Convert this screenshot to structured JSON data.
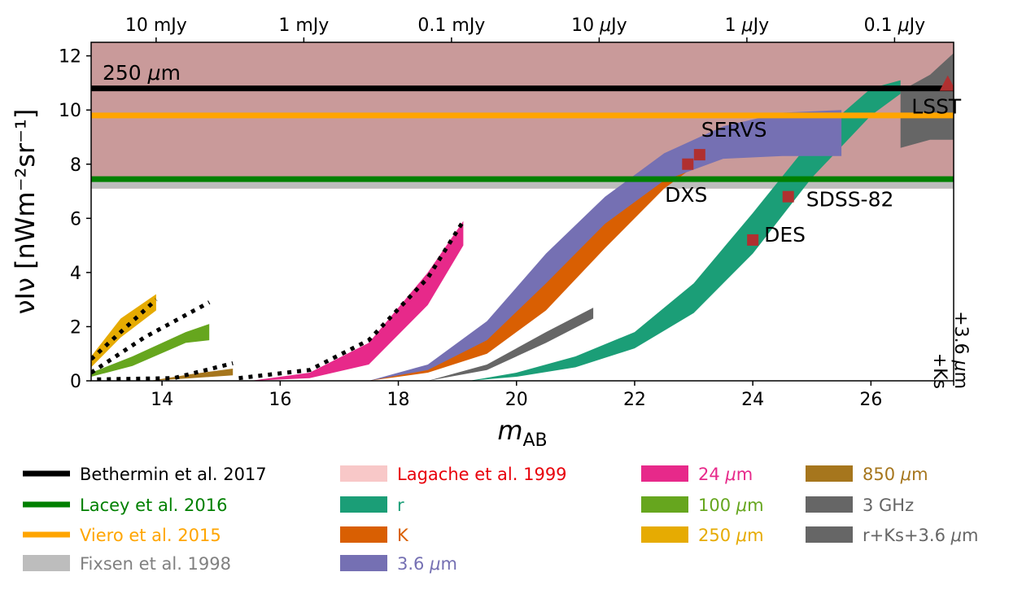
{
  "chart_data": {
    "type": "area",
    "title": "",
    "xlabel": "m",
    "xlabel_sub": "AB",
    "ylabel": "νIν [nWm⁻²sr⁻¹]",
    "xlim": [
      12.8,
      27.4
    ],
    "ylim": [
      0,
      12.5
    ],
    "x_ticks": [
      14,
      16,
      18,
      20,
      22,
      24,
      26
    ],
    "y_ticks": [
      0,
      2,
      4,
      6,
      8,
      10,
      12
    ],
    "top_axis": {
      "ticks": [
        {
          "m": 13.9,
          "label": "10 mJy"
        },
        {
          "m": 16.4,
          "label": "1 mJy"
        },
        {
          "m": 18.9,
          "label": "0.1 mJy"
        },
        {
          "m": 21.4,
          "label": "10 μJy"
        },
        {
          "m": 23.9,
          "label": "1 μJy"
        },
        {
          "m": 26.4,
          "label": "0.1 μJy"
        }
      ]
    },
    "extra_xtick_label": "+3.6 μm\n+Ks",
    "panel_label": "250 μm",
    "hlines": [
      {
        "name": "Bethermin et al. 2017",
        "y": 10.8,
        "color": "#000000"
      },
      {
        "name": "Lacey et al. 2016",
        "y": 7.45,
        "color": "#008000"
      },
      {
        "name": "Viero et al. 2015",
        "y": 9.8,
        "color": "#ffa500"
      }
    ],
    "hbands": [
      {
        "name": "Lagache et al. 1999",
        "y0": 7.1,
        "y1": 12.5,
        "color": "#c99a9a"
      },
      {
        "name": "Fixsen et al. 1998",
        "y0": 7.1,
        "y1": 7.35,
        "color": "#bdbdbd"
      }
    ],
    "series": [
      {
        "name": "r",
        "color": "#1b9e77",
        "x": [
          19.2,
          20,
          21,
          22,
          23,
          24,
          25,
          26,
          26.5
        ],
        "lower": [
          0,
          0.15,
          0.5,
          1.2,
          2.5,
          4.7,
          7.5,
          9.8,
          10.6
        ],
        "upper": [
          0,
          0.3,
          0.9,
          1.8,
          3.6,
          6.2,
          8.9,
          10.8,
          11.1
        ]
      },
      {
        "name": "K",
        "color": "#d95f02",
        "x": [
          17.5,
          18.5,
          19.5,
          20.5,
          21.5,
          22.5,
          23
        ],
        "lower": [
          0,
          0.3,
          1,
          2.6,
          4.9,
          7.1,
          7.9
        ],
        "upper": [
          0,
          0.5,
          1.6,
          3.7,
          6.3,
          8.1,
          8.7
        ]
      },
      {
        "name": "3.6 μm",
        "color": "#7570b3",
        "x": [
          17.5,
          18.5,
          19.5,
          20.5,
          21.5,
          22.5,
          23.5,
          24.5,
          25.5
        ],
        "lower": [
          0,
          0.4,
          1.5,
          3.6,
          5.8,
          7.4,
          8.2,
          8.3,
          8.3
        ],
        "upper": [
          0,
          0.6,
          2.2,
          4.7,
          6.8,
          8.4,
          9.4,
          9.9,
          10.0
        ]
      },
      {
        "name": "24 μm",
        "color": "#e7298a",
        "x": [
          15.5,
          16.5,
          17.5,
          18.5,
          19.1
        ],
        "lower": [
          0,
          0.1,
          0.6,
          2.8,
          5.0
        ],
        "upper": [
          0,
          0.3,
          1.4,
          4.0,
          5.9
        ]
      },
      {
        "name": "100 μm",
        "color": "#66a61e",
        "x": [
          12.8,
          13.5,
          14.4,
          14.8
        ],
        "lower": [
          0.15,
          0.55,
          1.4,
          1.5
        ],
        "upper": [
          0.3,
          0.9,
          1.8,
          2.1
        ]
      },
      {
        "name": "250 μm",
        "color": "#e6ab02",
        "x": [
          12.8,
          13.3,
          13.9
        ],
        "lower": [
          0.5,
          1.6,
          2.6
        ],
        "upper": [
          0.9,
          2.3,
          3.2
        ]
      },
      {
        "name": "850 μm",
        "color": "#a6761d",
        "x": [
          13.8,
          14.5,
          15.2
        ],
        "lower": [
          0,
          0.1,
          0.2
        ],
        "upper": [
          0,
          0.25,
          0.45
        ]
      },
      {
        "name": "3 GHz",
        "color": "#666666",
        "x": [
          18.5,
          19.5,
          20.5,
          21.3
        ],
        "lower": [
          0,
          0.4,
          1.4,
          2.3
        ],
        "upper": [
          0,
          0.6,
          1.8,
          2.7
        ]
      },
      {
        "name": "r+Ks+3.6 μm",
        "color": "#666666",
        "x": [
          26.5,
          27.0,
          27.4
        ],
        "lower": [
          8.6,
          8.9,
          8.9
        ],
        "upper": [
          10.7,
          11.3,
          12.1
        ]
      }
    ],
    "dotted_lines": [
      {
        "x": [
          12.8,
          13.3,
          13.9
        ],
        "y": [
          0.8,
          1.8,
          3.0
        ]
      },
      {
        "x": [
          12.8,
          13.7,
          14.8
        ],
        "y": [
          0.3,
          1.6,
          2.9
        ]
      },
      {
        "x": [
          12.9,
          14.2,
          15.2
        ],
        "y": [
          0.05,
          0.1,
          0.65
        ]
      },
      {
        "x": [
          15.3,
          16.5,
          17.5,
          18.5,
          19.1
        ],
        "y": [
          0.1,
          0.4,
          1.5,
          3.8,
          5.9
        ]
      }
    ],
    "markers": [
      {
        "name": "SERVS",
        "x": 23.1,
        "y": 8.35,
        "shape": "square"
      },
      {
        "name": "DXS",
        "x": 22.9,
        "y": 8.0,
        "shape": "square"
      },
      {
        "name": "SDSS-82",
        "x": 24.6,
        "y": 6.8,
        "shape": "square"
      },
      {
        "name": "DES",
        "x": 24.0,
        "y": 5.2,
        "shape": "square"
      },
      {
        "name": "LSST",
        "x": 27.3,
        "y": 10.95,
        "shape": "triangle"
      }
    ],
    "marker_color": "#b03030",
    "legend": {
      "placement": "bottom",
      "columns": [
        [
          {
            "label": "Bethermin et al. 2017",
            "kind": "line",
            "color": "#000000",
            "text_color": "#000000"
          },
          {
            "label": "Lacey et al. 2016",
            "kind": "line",
            "color": "#008000",
            "text_color": "#008000"
          },
          {
            "label": "Viero et al. 2015",
            "kind": "line",
            "color": "#ffa500",
            "text_color": "#ffa500"
          },
          {
            "label": "Fixsen et al. 1998",
            "kind": "patch",
            "color": "#bdbdbd",
            "text_color": "#808080"
          }
        ],
        [
          {
            "label": "Lagache et al. 1999",
            "kind": "patch",
            "color": "#f8c8c8",
            "text_color": "#e8000b"
          },
          {
            "label": "r",
            "kind": "patch",
            "color": "#1b9e77",
            "text_color": "#1b9e77"
          },
          {
            "label": "K",
            "kind": "patch",
            "color": "#d95f02",
            "text_color": "#d95f02"
          },
          {
            "label": "3.6 μm",
            "kind": "patch",
            "color": "#7570b3",
            "text_color": "#7570b3"
          }
        ],
        [
          {
            "label": "24 μm",
            "kind": "patch",
            "color": "#e7298a",
            "text_color": "#e7298a"
          },
          {
            "label": "100 μm",
            "kind": "patch",
            "color": "#66a61e",
            "text_color": "#66a61e"
          },
          {
            "label": "250 μm",
            "kind": "patch",
            "color": "#e6ab02",
            "text_color": "#e6ab02"
          }
        ],
        [
          {
            "label": "850 μm",
            "kind": "patch",
            "color": "#a6761d",
            "text_color": "#a6761d"
          },
          {
            "label": "3 GHz",
            "kind": "patch",
            "color": "#666666",
            "text_color": "#666666"
          },
          {
            "label": "r+Ks+3.6 μm",
            "kind": "patch",
            "color": "#666666",
            "text_color": "#666666"
          }
        ]
      ]
    }
  }
}
